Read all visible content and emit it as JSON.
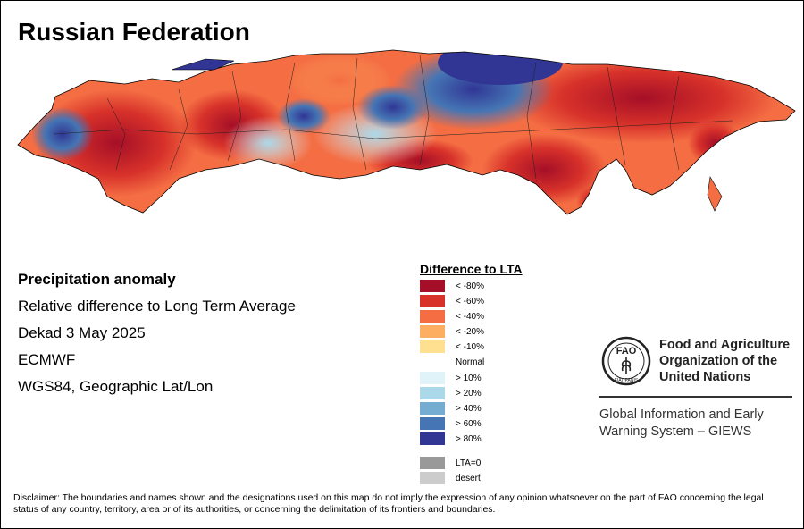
{
  "title": "Russian Federation",
  "info": {
    "heading": "Precipitation anomaly",
    "line1": "Relative difference to Long Term Average",
    "line2": "Dekad 3 May 2025",
    "line3": "ECMWF",
    "line4": "WGS84, Geographic Lat/Lon"
  },
  "legend": {
    "title": "Difference to LTA",
    "items": [
      {
        "label": "< -80%",
        "color": "#a50f27"
      },
      {
        "label": "< -60%",
        "color": "#d7312a"
      },
      {
        "label": "< -40%",
        "color": "#f46d43"
      },
      {
        "label": "< -20%",
        "color": "#fdae61"
      },
      {
        "label": "< -10%",
        "color": "#fee090"
      },
      {
        "label": "> 10%",
        "color": "#e0f3f8"
      },
      {
        "label": "> 20%",
        "color": "#abd9e9"
      },
      {
        "label": "> 40%",
        "color": "#74add1"
      },
      {
        "label": "> 60%",
        "color": "#4575b4"
      },
      {
        "label": "> 80%",
        "color": "#313695"
      },
      {
        "label": "LTA=0",
        "color": "#999999"
      },
      {
        "label": "desert",
        "color": "#cccccc"
      }
    ],
    "normal_label": "Normal"
  },
  "fao": {
    "line1": "Food and Agriculture",
    "line2": "Organization of the",
    "line3": "United Nations",
    "logo_text": "FAO",
    "motto": "FIAT PANIS"
  },
  "giews": {
    "line1": "Global Information and Early",
    "line2": "Warning System – GIEWS"
  },
  "disclaimer": "Disclaimer: The boundaries and names shown and the designations used on this map do not imply the expression of any opinion whatsoever on the part of FAO concerning the legal status of any country, territory, area or of its authorities, or concerning the delimitation of its frontiers and boundaries."
}
